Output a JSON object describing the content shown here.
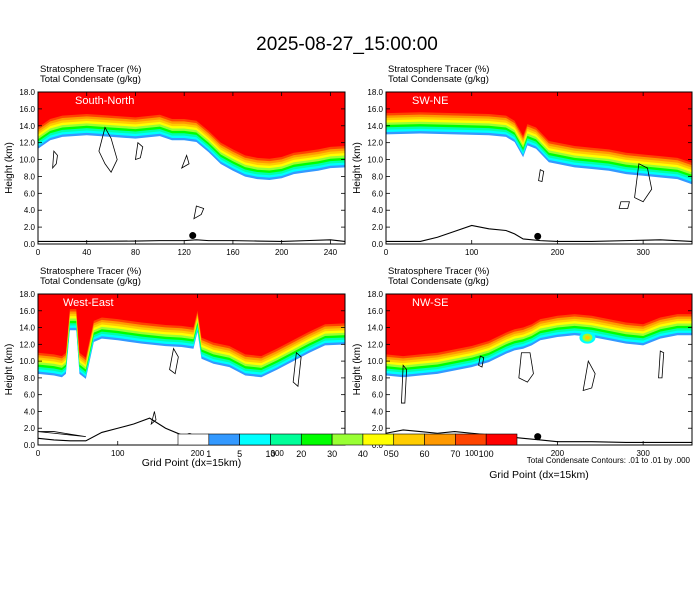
{
  "page_title": "2025-08-27_15:00:00",
  "colors": {
    "stratosphere": "#ff0000",
    "transition": [
      "#ff4400",
      "#ff9900",
      "#ffcc00",
      "#ffff00",
      "#99ff33",
      "#00ff00",
      "#00ffaa",
      "#00ffff",
      "#3399ff"
    ],
    "contour": "#000000",
    "background": "#ffffff"
  },
  "colorbar": {
    "labels": [
      "1",
      "5",
      "10",
      "20",
      "30",
      "40",
      "50",
      "60",
      "70",
      "100"
    ],
    "colors": [
      "#ffffff",
      "#3399ff",
      "#00ffff",
      "#00ff99",
      "#00ff00",
      "#99ff33",
      "#ffff00",
      "#ffcc00",
      "#ff9900",
      "#ff4400",
      "#ff0000"
    ]
  },
  "footnote": "Total Condensate Contours: .01 to .01 by .000",
  "chart_data": [
    {
      "type": "area",
      "title": "South-North",
      "header_line1": "Stratosphere Tracer   (%)",
      "header_line2": "Total Condensate   (g/kg)",
      "ylabel": "Height (km)",
      "xlabel": "",
      "xlim": [
        0,
        252
      ],
      "ylim": [
        0,
        18
      ],
      "xticks": [
        {
          "v": 0,
          "label": "0"
        },
        {
          "v": 40,
          "label": "40"
        },
        {
          "v": 80,
          "label": "80"
        },
        {
          "v": 120,
          "label": "120"
        },
        {
          "v": 160,
          "label": "160"
        },
        {
          "v": 200,
          "label": "200"
        },
        {
          "v": 240,
          "label": "240"
        }
      ],
      "yticks": [
        {
          "v": 0,
          "label": "0.0"
        },
        {
          "v": 2,
          "label": "2.0"
        },
        {
          "v": 4,
          "label": "4.0"
        },
        {
          "v": 6,
          "label": "6.0"
        },
        {
          "v": 8,
          "label": "8.0"
        },
        {
          "v": 10,
          "label": "10.0"
        },
        {
          "v": 12,
          "label": "12.0"
        },
        {
          "v": 14,
          "label": "14.0"
        },
        {
          "v": 16,
          "label": "16.0"
        },
        {
          "v": 18,
          "label": "18.0"
        }
      ],
      "tropopause": {
        "x": [
          0,
          10,
          20,
          40,
          60,
          80,
          100,
          110,
          120,
          130,
          140,
          150,
          160,
          170,
          180,
          190,
          200,
          210,
          220,
          230,
          240,
          252
        ],
        "y": [
          13.8,
          14.8,
          15.2,
          15.4,
          15.2,
          15.0,
          15.3,
          14.8,
          14.8,
          14.6,
          13.4,
          12.0,
          11.2,
          10.5,
          10.2,
          10.1,
          10.3,
          10.8,
          11.0,
          11.2,
          11.5,
          11.6
        ]
      },
      "terrain": {
        "x": [
          0,
          40,
          80,
          100,
          120,
          130,
          140,
          160,
          180,
          200,
          220,
          240,
          252
        ],
        "y": [
          0.3,
          0.3,
          0.35,
          0.4,
          0.4,
          0.5,
          0.4,
          0.4,
          0.35,
          0.3,
          0.4,
          0.5,
          0.3
        ]
      },
      "marker": {
        "x": 127,
        "y": 1.0
      },
      "clouds": [
        {
          "x": [
            12,
            15,
            16,
            13,
            12
          ],
          "y": [
            9.0,
            9.5,
            10.5,
            11.0,
            9.0
          ]
        },
        {
          "x": [
            50,
            55,
            60,
            65,
            60,
            55,
            50
          ],
          "y": [
            11.0,
            9.5,
            8.5,
            10.0,
            12.5,
            13.8,
            11.0
          ]
        },
        {
          "x": [
            80,
            84,
            86,
            82,
            80
          ],
          "y": [
            10.0,
            10.2,
            11.5,
            12.0,
            10.0
          ]
        },
        {
          "x": [
            128,
            134,
            136,
            130,
            128
          ],
          "y": [
            3.0,
            3.5,
            4.2,
            4.5,
            3.0
          ]
        },
        {
          "x": [
            118,
            124,
            122,
            118
          ],
          "y": [
            9.0,
            9.5,
            10.5,
            9.0
          ]
        }
      ]
    },
    {
      "type": "area",
      "title": "SW-NE",
      "header_line1": "Stratosphere Tracer   (%)",
      "header_line2": "Total Condensate   (g/kg)",
      "ylabel": "Height (km)",
      "xlabel": "",
      "xlim": [
        0,
        357
      ],
      "ylim": [
        0,
        18
      ],
      "xticks": [
        {
          "v": 0,
          "label": "0"
        },
        {
          "v": 100,
          "label": "100"
        },
        {
          "v": 200,
          "label": "200"
        },
        {
          "v": 300,
          "label": "300"
        }
      ],
      "yticks": [
        {
          "v": 0,
          "label": "0.0"
        },
        {
          "v": 2,
          "label": "2.0"
        },
        {
          "v": 4,
          "label": "4.0"
        },
        {
          "v": 6,
          "label": "6.0"
        },
        {
          "v": 8,
          "label": "8.0"
        },
        {
          "v": 10,
          "label": "10.0"
        },
        {
          "v": 12,
          "label": "12.0"
        },
        {
          "v": 14,
          "label": "14.0"
        },
        {
          "v": 16,
          "label": "16.0"
        },
        {
          "v": 18,
          "label": "18.0"
        }
      ],
      "tropopause": {
        "x": [
          0,
          40,
          80,
          120,
          140,
          150,
          160,
          165,
          175,
          190,
          220,
          240,
          260,
          280,
          300,
          320,
          340,
          357
        ],
        "y": [
          15.5,
          15.6,
          15.5,
          15.4,
          15.2,
          14.6,
          12.8,
          14.2,
          13.8,
          12.2,
          11.6,
          11.4,
          11.2,
          10.8,
          10.6,
          10.4,
          10.2,
          9.6
        ]
      },
      "terrain": {
        "x": [
          0,
          40,
          60,
          80,
          100,
          120,
          140,
          150,
          160,
          180,
          200,
          240,
          280,
          320,
          357
        ],
        "y": [
          0.3,
          0.3,
          0.8,
          1.5,
          2.2,
          1.8,
          1.6,
          1.2,
          0.6,
          0.4,
          0.3,
          0.3,
          0.4,
          0.5,
          0.3
        ]
      },
      "marker": {
        "x": 177,
        "y": 0.9
      },
      "clouds": [
        {
          "x": [
            178,
            182,
            184,
            180,
            178
          ],
          "y": [
            7.5,
            7.4,
            8.6,
            8.8,
            7.5
          ]
        },
        {
          "x": [
            272,
            282,
            284,
            274,
            272
          ],
          "y": [
            4.2,
            4.2,
            5.0,
            5.0,
            4.2
          ]
        },
        {
          "x": [
            290,
            300,
            310,
            305,
            295,
            290
          ],
          "y": [
            5.5,
            5.0,
            6.5,
            9.0,
            9.5,
            5.5
          ]
        }
      ]
    },
    {
      "type": "area",
      "title": "West-East",
      "header_line1": "Stratosphere Tracer   (%)",
      "header_line2": "Total Condensate   (g/kg)",
      "ylabel": "Height (km)",
      "xlabel": "Grid Point (dx=15km)",
      "xlim": [
        0,
        385
      ],
      "ylim": [
        0,
        18
      ],
      "xticks": [
        {
          "v": 0,
          "label": "0"
        },
        {
          "v": 100,
          "label": "100"
        },
        {
          "v": 200,
          "label": "200"
        },
        {
          "v": 300,
          "label": "300"
        }
      ],
      "yticks": [
        {
          "v": 0,
          "label": "0.0"
        },
        {
          "v": 2,
          "label": "2.0"
        },
        {
          "v": 4,
          "label": "4.0"
        },
        {
          "v": 6,
          "label": "6.0"
        },
        {
          "v": 8,
          "label": "8.0"
        },
        {
          "v": 10,
          "label": "10.0"
        },
        {
          "v": 12,
          "label": "12.0"
        },
        {
          "v": 14,
          "label": "14.0"
        },
        {
          "v": 16,
          "label": "16.0"
        },
        {
          "v": 18,
          "label": "18.0"
        }
      ],
      "tropopause": {
        "x": [
          0,
          20,
          30,
          35,
          40,
          48,
          52,
          60,
          70,
          80,
          100,
          130,
          160,
          180,
          195,
          200,
          205,
          220,
          240,
          260,
          280,
          300,
          320,
          340,
          360,
          385
        ],
        "y": [
          11.0,
          10.8,
          10.6,
          11.0,
          16.2,
          16.2,
          11.0,
          10.4,
          14.8,
          15.2,
          15.0,
          14.6,
          14.3,
          14.2,
          14.0,
          16.0,
          12.8,
          12.2,
          11.8,
          10.8,
          10.6,
          11.5,
          12.5,
          13.5,
          14.4,
          14.5
        ]
      },
      "terrain": {
        "x": [
          0,
          20,
          40,
          60,
          80,
          100,
          120,
          140,
          160,
          180,
          200,
          220,
          240,
          260,
          280,
          300,
          340,
          385
        ],
        "y": [
          0.8,
          0.6,
          0.5,
          0.5,
          1.5,
          2.0,
          2.5,
          3.2,
          2.0,
          1.2,
          0.8,
          0.6,
          0.5,
          0.5,
          0.4,
          0.4,
          0.3,
          0.3
        ]
      },
      "marker": {
        "x": 190,
        "y": 1.0
      },
      "clouds": [
        {
          "x": [
            0,
            20,
            40,
            60,
            40,
            20,
            0
          ],
          "y": [
            1.6,
            1.4,
            1.2,
            1.0,
            1.3,
            1.6,
            1.6
          ]
        },
        {
          "x": [
            165,
            172,
            176,
            170,
            165
          ],
          "y": [
            9.0,
            8.5,
            10.5,
            11.5,
            9.0
          ]
        },
        {
          "x": [
            320,
            326,
            330,
            324,
            320
          ],
          "y": [
            7.5,
            7.0,
            10.5,
            11.0,
            7.5
          ]
        },
        {
          "x": [
            142,
            148,
            146,
            142
          ],
          "y": [
            2.5,
            3.0,
            4.0,
            2.5
          ]
        }
      ]
    },
    {
      "type": "area",
      "title": "NW-SE",
      "header_line1": "Stratosphere Tracer   (%)",
      "header_line2": "Total Condensate   (g/kg)",
      "ylabel": "Height (km)",
      "xlabel": "Grid Point (dx=15km)",
      "xlim": [
        0,
        357
      ],
      "ylim": [
        0,
        18
      ],
      "xticks": [
        {
          "v": 0,
          "label": "0"
        },
        {
          "v": 100,
          "label": "100"
        },
        {
          "v": 200,
          "label": "200"
        },
        {
          "v": 300,
          "label": "300"
        }
      ],
      "yticks": [
        {
          "v": 0,
          "label": "0.0"
        },
        {
          "v": 2,
          "label": "2.0"
        },
        {
          "v": 4,
          "label": "4.0"
        },
        {
          "v": 6,
          "label": "6.0"
        },
        {
          "v": 8,
          "label": "8.0"
        },
        {
          "v": 10,
          "label": "10.0"
        },
        {
          "v": 12,
          "label": "12.0"
        },
        {
          "v": 14,
          "label": "14.0"
        },
        {
          "v": 16,
          "label": "16.0"
        },
        {
          "v": 18,
          "label": "18.0"
        }
      ],
      "tropopause": {
        "x": [
          0,
          20,
          40,
          60,
          80,
          100,
          120,
          140,
          150,
          160,
          170,
          180,
          190,
          200,
          220,
          240,
          260,
          280,
          300,
          320,
          340,
          357
        ],
        "y": [
          10.8,
          10.6,
          10.8,
          11.0,
          11.4,
          11.8,
          12.4,
          13.4,
          13.8,
          14.0,
          14.4,
          15.0,
          15.2,
          15.4,
          15.6,
          15.4,
          15.0,
          14.6,
          14.4,
          15.2,
          15.6,
          15.6
        ]
      },
      "terrain": {
        "x": [
          0,
          20,
          40,
          60,
          80,
          100,
          120,
          140,
          160,
          180,
          200,
          240,
          280,
          320,
          357
        ],
        "y": [
          1.4,
          1.8,
          1.6,
          1.4,
          1.6,
          1.4,
          1.2,
          1.0,
          0.8,
          0.6,
          0.4,
          0.4,
          0.3,
          0.3,
          0.3
        ]
      },
      "marker": {
        "x": 177,
        "y": 1.0
      },
      "patch": {
        "x": 235,
        "y": 12.8
      },
      "clouds": [
        {
          "x": [
            18,
            22,
            24,
            20,
            18
          ],
          "y": [
            5.0,
            5.0,
            9.0,
            9.5,
            5.0
          ]
        },
        {
          "x": [
            155,
            165,
            172,
            168,
            158,
            155
          ],
          "y": [
            8.0,
            7.5,
            8.5,
            11.0,
            11.0,
            8.0
          ]
        },
        {
          "x": [
            108,
            112,
            114,
            110,
            108
          ],
          "y": [
            9.5,
            9.3,
            10.4,
            10.6,
            9.5
          ]
        },
        {
          "x": [
            230,
            240,
            244,
            236,
            230
          ],
          "y": [
            6.5,
            6.8,
            8.5,
            10.0,
            6.5
          ]
        },
        {
          "x": [
            318,
            322,
            324,
            320,
            318
          ],
          "y": [
            8.0,
            8.0,
            11.0,
            11.2,
            8.0
          ]
        }
      ]
    }
  ]
}
